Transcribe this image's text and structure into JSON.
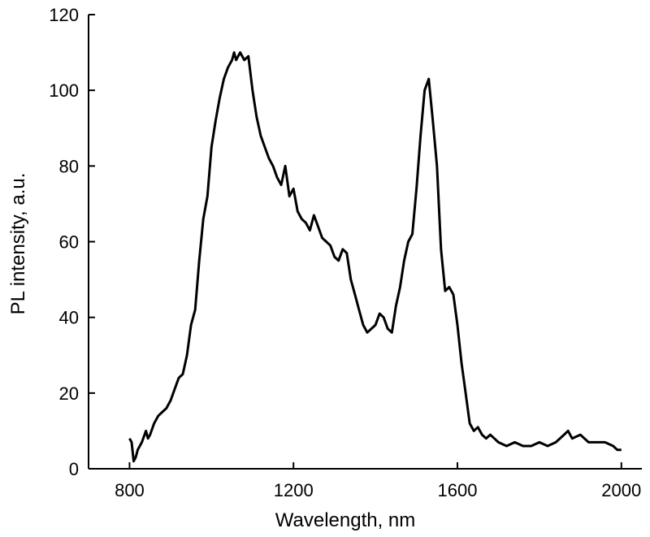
{
  "chart_data": {
    "type": "line",
    "title": "",
    "xlabel": "Wavelength, nm",
    "ylabel": "PL intensity, a.u.",
    "xlim": [
      700,
      2050
    ],
    "ylim": [
      0,
      120
    ],
    "xticks": [
      800,
      1200,
      1600,
      2000
    ],
    "yticks": [
      0,
      20,
      40,
      60,
      80,
      100,
      120
    ],
    "grid": false,
    "legend": "none",
    "line_color": "#000000",
    "series": [
      {
        "x": [
          800,
          805,
          810,
          815,
          820,
          830,
          840,
          845,
          850,
          860,
          870,
          880,
          890,
          900,
          910,
          920,
          930,
          940,
          950,
          960,
          970,
          980,
          990,
          1000,
          1010,
          1020,
          1030,
          1040,
          1050,
          1055,
          1060,
          1065,
          1070,
          1080,
          1090,
          1100,
          1110,
          1120,
          1130,
          1140,
          1150,
          1160,
          1170,
          1180,
          1190,
          1200,
          1210,
          1220,
          1230,
          1240,
          1250,
          1260,
          1270,
          1280,
          1290,
          1300,
          1310,
          1320,
          1330,
          1340,
          1350,
          1360,
          1370,
          1380,
          1390,
          1400,
          1410,
          1420,
          1430,
          1440,
          1450,
          1460,
          1470,
          1480,
          1490,
          1500,
          1510,
          1520,
          1530,
          1540,
          1550,
          1560,
          1570,
          1580,
          1590,
          1600,
          1610,
          1620,
          1630,
          1640,
          1650,
          1660,
          1670,
          1680,
          1690,
          1700,
          1720,
          1740,
          1760,
          1780,
          1800,
          1820,
          1840,
          1860,
          1870,
          1880,
          1900,
          1920,
          1940,
          1960,
          1980,
          1990,
          2000
        ],
        "y": [
          8,
          7,
          2,
          3,
          5,
          7,
          10,
          8,
          9,
          12,
          14,
          15,
          16,
          18,
          21,
          24,
          25,
          30,
          38,
          42,
          55,
          66,
          72,
          85,
          92,
          98,
          103,
          106,
          108,
          110,
          108,
          109,
          110,
          108,
          109,
          100,
          93,
          88,
          85,
          82,
          80,
          77,
          75,
          80,
          72,
          74,
          68,
          66,
          65,
          63,
          67,
          64,
          61,
          60,
          59,
          56,
          55,
          58,
          57,
          50,
          46,
          42,
          38,
          36,
          37,
          38,
          41,
          40,
          37,
          36,
          43,
          48,
          55,
          60,
          62,
          74,
          88,
          100,
          103,
          92,
          80,
          58,
          47,
          48,
          46,
          38,
          28,
          20,
          12,
          10,
          11,
          9,
          8,
          9,
          8,
          7,
          6,
          7,
          6,
          6,
          7,
          6,
          7,
          9,
          10,
          8,
          9,
          7,
          7,
          7,
          6,
          5,
          5
        ]
      }
    ]
  }
}
